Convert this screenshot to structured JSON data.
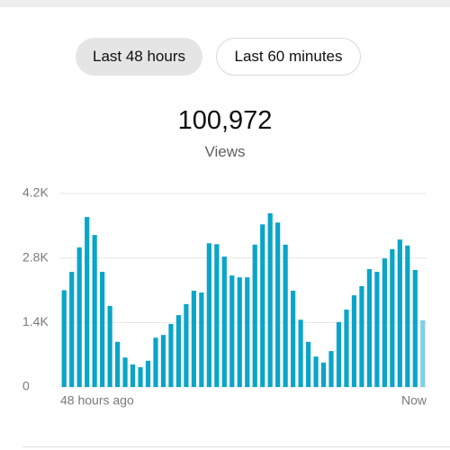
{
  "tabs": [
    "Last 48 hours",
    "Last 60 minutes"
  ],
  "total": "100,972",
  "metric": "Views",
  "chart_data": {
    "type": "bar",
    "categories": [
      "48 hours ago",
      null,
      null,
      null,
      null,
      null,
      null,
      null,
      null,
      null,
      null,
      null,
      null,
      null,
      null,
      null,
      null,
      null,
      null,
      null,
      null,
      null,
      null,
      null,
      null,
      null,
      null,
      null,
      null,
      null,
      null,
      null,
      null,
      null,
      null,
      null,
      null,
      null,
      null,
      null,
      null,
      null,
      null,
      null,
      null,
      null,
      null,
      "Now"
    ],
    "values": [
      2100,
      2500,
      3030,
      3690,
      3300,
      2500,
      1760,
      980,
      640,
      490,
      430,
      570,
      1070,
      1130,
      1370,
      1560,
      1800,
      2090,
      2050,
      3120,
      3100,
      2830,
      2420,
      2380,
      2380,
      3090,
      3530,
      3770,
      3570,
      3090,
      2090,
      1460,
      980,
      660,
      530,
      780,
      1410,
      1680,
      1990,
      2190,
      2560,
      2500,
      2790,
      2990,
      3200,
      3070,
      2540,
      1450
    ],
    "color": "#0aa5c8",
    "last_color": "#7fd0e2",
    "ylim": [
      0,
      4200
    ],
    "yticks": [
      0,
      {
        "value": 1400,
        "label": "1.4K"
      },
      {
        "value": 2800,
        "label": "2.8K"
      },
      {
        "value": 4200,
        "label": "4.2K"
      }
    ],
    "grid": true
  }
}
